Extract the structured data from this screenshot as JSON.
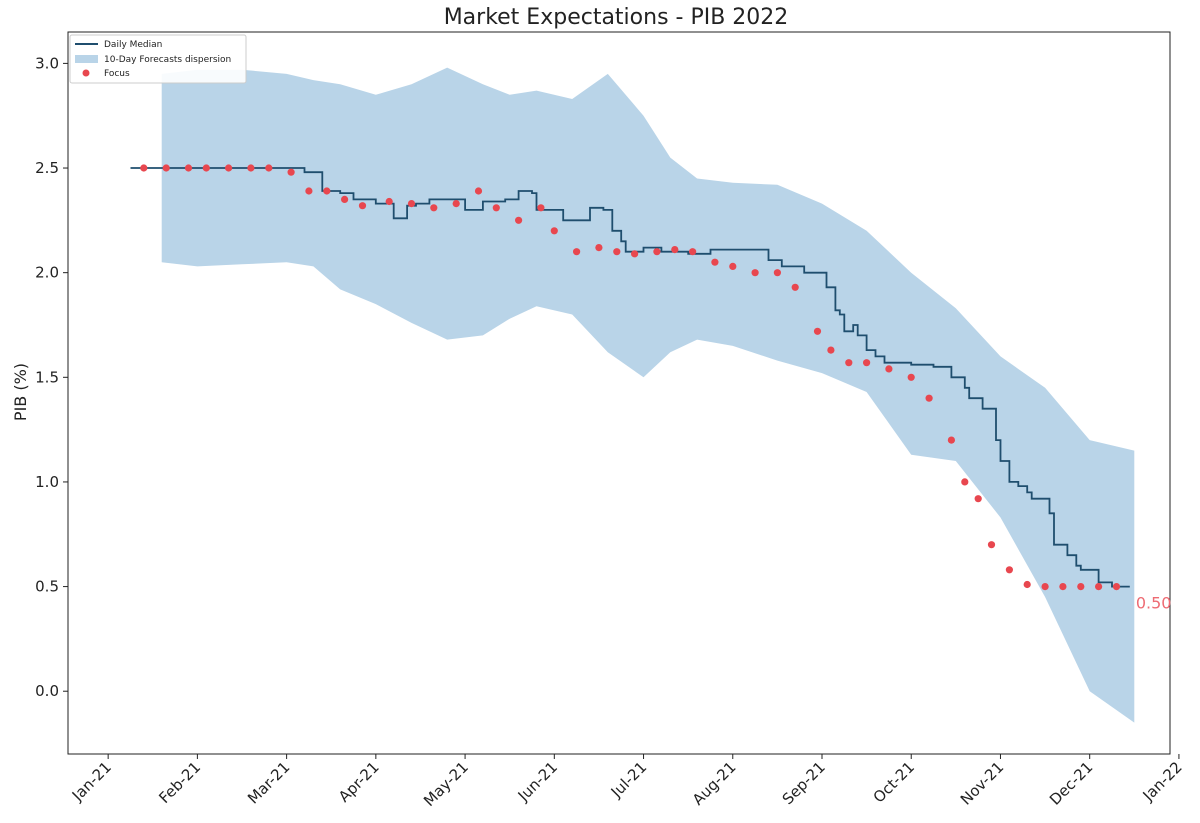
{
  "chart_data": {
    "type": "line",
    "title": "Market Expectations - PIB 2022",
    "ylabel": "PIB (%)",
    "xlabel": "",
    "ylim": [
      -0.3,
      3.15
    ],
    "xlim": [
      -0.45,
      11.9
    ],
    "yticks": [
      0.0,
      0.5,
      1.0,
      1.5,
      2.0,
      2.5,
      3.0
    ],
    "ytick_labels": [
      "0.0",
      "0.5",
      "1.0",
      "1.5",
      "2.0",
      "2.5",
      "3.0"
    ],
    "xticks": [
      0,
      1,
      2,
      3,
      4,
      5,
      6,
      7,
      8,
      9,
      10,
      11,
      12
    ],
    "xtick_labels": [
      "Jan-21",
      "Feb-21",
      "Mar-21",
      "Apr-21",
      "May-21",
      "Jun-21",
      "Jul-21",
      "Aug-21",
      "Sep-21",
      "Oct-21",
      "Nov-21",
      "Dec-21",
      "Jan-22"
    ],
    "grid": false,
    "legend_position": "top-left",
    "legend": [
      "Daily Median",
      "10-Day Forecasts dispersion",
      "Focus"
    ],
    "colors": {
      "median": "#1f4e6e",
      "band": "#b9d4e8",
      "focus": "#e8474f",
      "annotation": "#ee6b73"
    },
    "series": [
      {
        "name": "Daily Median",
        "kind": "line",
        "x": [
          0.25,
          2.15,
          2.2,
          2.4,
          2.6,
          2.75,
          3.0,
          3.2,
          3.35,
          3.45,
          3.6,
          3.75,
          4.0,
          4.2,
          4.45,
          4.6,
          4.75,
          4.8,
          5.05,
          5.1,
          5.4,
          5.55,
          5.65,
          5.75,
          5.8,
          6.0,
          6.2,
          6.5,
          6.75,
          7.0,
          7.4,
          7.55,
          7.8,
          8.0,
          8.05,
          8.15,
          8.2,
          8.25,
          8.35,
          8.4,
          8.5,
          8.6,
          8.7,
          8.8,
          9.0,
          9.25,
          9.45,
          9.6,
          9.65,
          9.8,
          9.95,
          10.0,
          10.1,
          10.2,
          10.3,
          10.35,
          10.55,
          10.6,
          10.75,
          10.85,
          10.9,
          11.1,
          11.25,
          11.45
        ],
        "y": [
          2.5,
          2.5,
          2.48,
          2.39,
          2.38,
          2.35,
          2.33,
          2.26,
          2.32,
          2.33,
          2.35,
          2.35,
          2.3,
          2.34,
          2.35,
          2.39,
          2.38,
          2.3,
          2.3,
          2.25,
          2.31,
          2.3,
          2.2,
          2.15,
          2.1,
          2.12,
          2.1,
          2.09,
          2.11,
          2.11,
          2.06,
          2.03,
          2.0,
          2.0,
          1.93,
          1.82,
          1.8,
          1.72,
          1.75,
          1.7,
          1.63,
          1.6,
          1.57,
          1.57,
          1.56,
          1.55,
          1.5,
          1.45,
          1.4,
          1.35,
          1.2,
          1.1,
          1.0,
          0.98,
          0.95,
          0.92,
          0.85,
          0.7,
          0.65,
          0.6,
          0.58,
          0.52,
          0.5,
          0.5
        ]
      },
      {
        "name": "10-Day Forecasts dispersion",
        "kind": "band",
        "x": [
          0.6,
          1.0,
          1.5,
          2.0,
          2.3,
          2.6,
          3.0,
          3.4,
          3.8,
          4.2,
          4.5,
          4.8,
          5.2,
          5.6,
          6.0,
          6.3,
          6.6,
          7.0,
          7.5,
          8.0,
          8.5,
          9.0,
          9.5,
          10.0,
          10.5,
          11.0,
          11.5
        ],
        "upper": [
          2.95,
          2.97,
          2.97,
          2.95,
          2.92,
          2.9,
          2.85,
          2.9,
          2.98,
          2.9,
          2.85,
          2.87,
          2.83,
          2.95,
          2.75,
          2.55,
          2.45,
          2.43,
          2.42,
          2.33,
          2.2,
          2.0,
          1.83,
          1.6,
          1.45,
          1.2,
          1.15
        ],
        "lower": [
          2.05,
          2.03,
          2.04,
          2.05,
          2.03,
          1.92,
          1.85,
          1.76,
          1.68,
          1.7,
          1.78,
          1.84,
          1.8,
          1.62,
          1.5,
          1.62,
          1.68,
          1.65,
          1.58,
          1.52,
          1.43,
          1.13,
          1.1,
          0.83,
          0.45,
          0.0,
          -0.15
        ]
      },
      {
        "name": "Focus",
        "kind": "scatter",
        "x": [
          0.4,
          0.65,
          0.9,
          1.1,
          1.35,
          1.6,
          1.8,
          2.05,
          2.25,
          2.45,
          2.65,
          2.85,
          3.15,
          3.4,
          3.65,
          3.9,
          4.15,
          4.35,
          4.6,
          4.85,
          5.0,
          5.25,
          5.5,
          5.7,
          5.9,
          6.15,
          6.35,
          6.55,
          6.8,
          7.0,
          7.25,
          7.5,
          7.7,
          7.95,
          8.1,
          8.3,
          8.5,
          8.75,
          9.0,
          9.2,
          9.45,
          9.6,
          9.75,
          9.9,
          10.1,
          10.3,
          10.5,
          10.7,
          10.9,
          11.1,
          11.3
        ],
        "y": [
          2.5,
          2.5,
          2.5,
          2.5,
          2.5,
          2.5,
          2.5,
          2.48,
          2.39,
          2.39,
          2.35,
          2.32,
          2.34,
          2.33,
          2.31,
          2.33,
          2.39,
          2.31,
          2.25,
          2.31,
          2.2,
          2.1,
          2.12,
          2.1,
          2.09,
          2.1,
          2.11,
          2.1,
          2.05,
          2.03,
          2.0,
          2.0,
          1.93,
          1.72,
          1.63,
          1.57,
          1.57,
          1.54,
          1.5,
          1.4,
          1.2,
          1.0,
          0.92,
          0.7,
          0.58,
          0.51,
          0.5,
          0.5,
          0.5,
          0.5,
          0.5
        ]
      }
    ],
    "annotation": {
      "text": "0.50",
      "x": 11.45,
      "y": 0.5
    }
  }
}
